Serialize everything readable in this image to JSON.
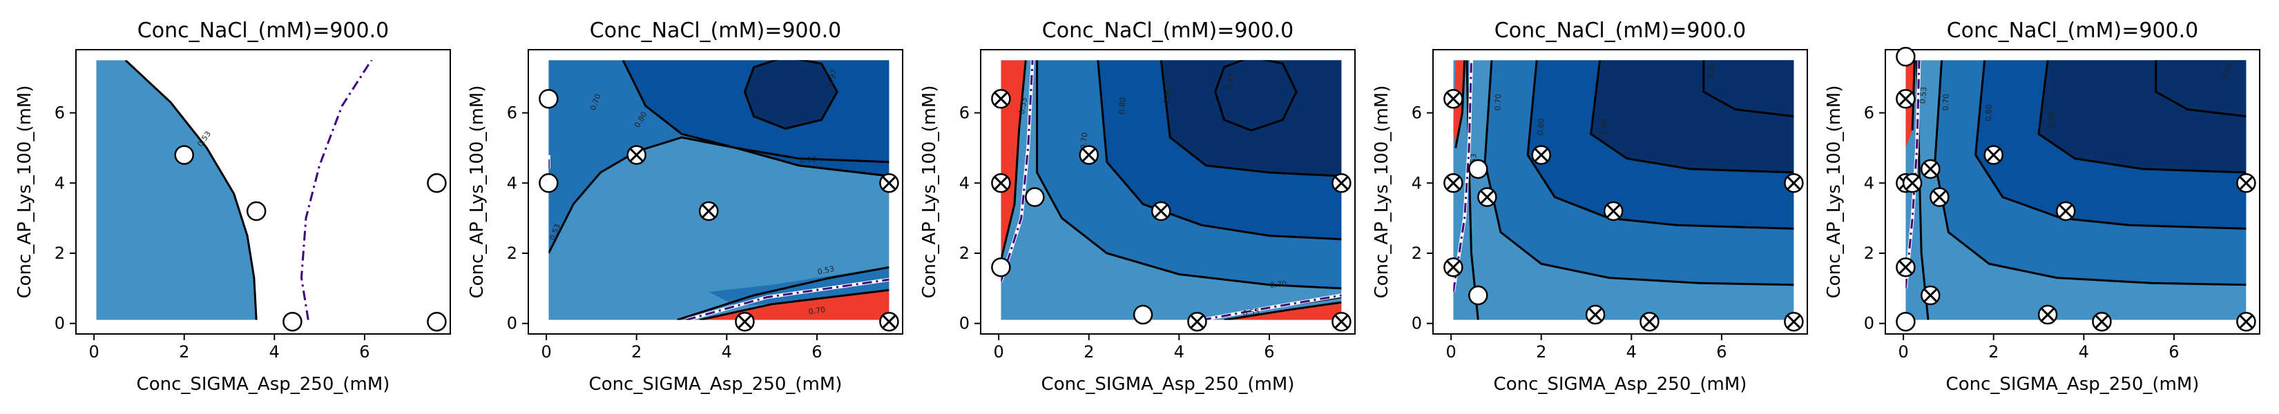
{
  "chart_data": [
    {
      "type": "contour",
      "title": "Conc_NaCl_(mM)=900.0",
      "xlabel": "Conc_SIGMA_Asp_250_(mM)",
      "ylabel": "Conc_AP_Lys_100_(mM)",
      "xlim": [
        -0.4,
        7.9
      ],
      "ylim": [
        -0.3,
        7.8
      ],
      "xticks": [
        0,
        2,
        4,
        6
      ],
      "yticks": [
        0,
        2,
        4,
        6
      ],
      "points_open": [
        [
          2.0,
          4.8
        ],
        [
          3.6,
          3.2
        ],
        [
          4.4,
          0.05
        ],
        [
          7.6,
          4.0
        ],
        [
          7.6,
          0.05
        ]
      ],
      "points_crossed": [],
      "contour_labels": [
        "0.53"
      ]
    },
    {
      "type": "contour",
      "title": "Conc_NaCl_(mM)=900.0",
      "xlabel": "Conc_SIGMA_Asp_250_(mM)",
      "ylabel": "Conc_AP_Lys_100_(mM)",
      "xlim": [
        -0.4,
        7.9
      ],
      "ylim": [
        -0.3,
        7.8
      ],
      "xticks": [
        0,
        2,
        4,
        6
      ],
      "yticks": [
        0,
        2,
        4,
        6
      ],
      "points_open": [
        [
          0.05,
          6.4
        ],
        [
          0.05,
          4.0
        ]
      ],
      "points_crossed": [
        [
          2.0,
          4.8
        ],
        [
          3.6,
          3.2
        ],
        [
          4.4,
          0.05
        ],
        [
          7.6,
          4.0
        ],
        [
          7.6,
          0.05
        ]
      ],
      "contour_labels": [
        "0.53",
        "0.70",
        "0.80",
        "0.90",
        "0.97"
      ]
    },
    {
      "type": "contour",
      "title": "Conc_NaCl_(mM)=900.0",
      "xlabel": "Conc_SIGMA_Asp_250_(mM)",
      "ylabel": "Conc_AP_Lys_100_(mM)",
      "xlim": [
        -0.4,
        7.9
      ],
      "ylim": [
        -0.3,
        7.8
      ],
      "xticks": [
        0,
        2,
        4,
        6
      ],
      "yticks": [
        0,
        2,
        4,
        6
      ],
      "points_open": [
        [
          0.05,
          1.6
        ],
        [
          0.8,
          3.6
        ],
        [
          3.2,
          0.25
        ]
      ],
      "points_crossed": [
        [
          0.05,
          6.4
        ],
        [
          0.05,
          4.0
        ],
        [
          2.0,
          4.8
        ],
        [
          3.6,
          3.2
        ],
        [
          4.4,
          0.05
        ],
        [
          7.6,
          4.0
        ],
        [
          7.6,
          0.05
        ]
      ],
      "contour_labels": [
        "0.53",
        "0.70",
        "0.80",
        "0.90",
        "0.97"
      ]
    },
    {
      "type": "contour",
      "title": "Conc_NaCl_(mM)=900.0",
      "xlabel": "Conc_SIGMA_Asp_250_(mM)",
      "ylabel": "Conc_AP_Lys_100_(mM)",
      "xlim": [
        -0.4,
        7.9
      ],
      "ylim": [
        -0.3,
        7.8
      ],
      "xticks": [
        0,
        2,
        4,
        6
      ],
      "yticks": [
        0,
        2,
        4,
        6
      ],
      "points_open": [
        [
          0.6,
          4.4
        ],
        [
          0.6,
          0.8
        ]
      ],
      "points_crossed": [
        [
          0.05,
          6.4
        ],
        [
          0.05,
          4.0
        ],
        [
          0.05,
          1.6
        ],
        [
          0.8,
          3.6
        ],
        [
          2.0,
          4.8
        ],
        [
          3.2,
          0.25
        ],
        [
          3.6,
          3.2
        ],
        [
          4.4,
          0.05
        ],
        [
          7.6,
          4.0
        ],
        [
          7.6,
          0.05
        ]
      ],
      "contour_labels": [
        "0.53",
        "0.70",
        "0.80",
        "0.90",
        "0.97"
      ]
    },
    {
      "type": "contour",
      "title": "Conc_NaCl_(mM)=900.0",
      "xlabel": "Conc_SIGMA_Asp_250_(mM)",
      "ylabel": "Conc_AP_Lys_100_(mM)",
      "xlim": [
        -0.4,
        7.9
      ],
      "ylim": [
        -0.3,
        7.8
      ],
      "xticks": [
        0,
        2,
        4,
        6
      ],
      "yticks": [
        0,
        2,
        4,
        6
      ],
      "points_open": [
        [
          0.05,
          7.6
        ],
        [
          0.05,
          0.05
        ]
      ],
      "points_crossed": [
        [
          0.05,
          6.4
        ],
        [
          0.05,
          4.0
        ],
        [
          0.05,
          1.6
        ],
        [
          0.2,
          4.0
        ],
        [
          0.6,
          4.4
        ],
        [
          0.6,
          0.8
        ],
        [
          0.8,
          3.6
        ],
        [
          2.0,
          4.8
        ],
        [
          3.2,
          0.25
        ],
        [
          3.6,
          3.2
        ],
        [
          4.4,
          0.05
        ],
        [
          7.6,
          4.0
        ],
        [
          7.6,
          0.05
        ]
      ],
      "contour_labels": [
        "0.53",
        "0.70",
        "0.80",
        "0.90",
        "0.97"
      ]
    }
  ],
  "colors": {
    "light": "#4292c6",
    "mid": "#2171b5",
    "dark": "#08519c",
    "darker": "#08306b",
    "red": "#ef3b2c",
    "dashdot": "#3f007d"
  }
}
